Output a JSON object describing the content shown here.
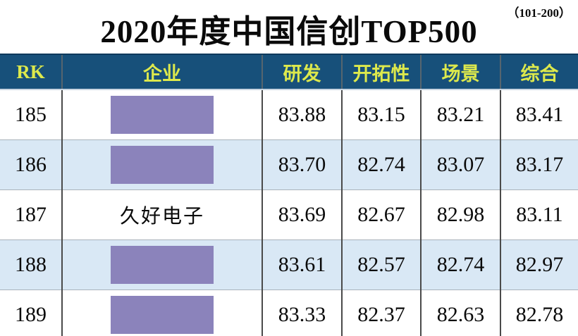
{
  "corner_note": "（101-200）",
  "title": "2020年度中国信创TOP500",
  "chart_data": {
    "type": "table",
    "title": "2020年度中国信创TOP500",
    "range_note": "（101-200）",
    "columns": [
      {
        "key": "rk",
        "label": "RK"
      },
      {
        "key": "company",
        "label": "企业"
      },
      {
        "key": "rd",
        "label": "研发"
      },
      {
        "key": "pioneering",
        "label": "开拓性"
      },
      {
        "key": "scene",
        "label": "场景"
      },
      {
        "key": "composite",
        "label": "综合"
      }
    ],
    "rows": [
      {
        "rk": "185",
        "company": "",
        "company_redacted": true,
        "rd": "83.88",
        "pioneering": "83.15",
        "scene": "83.21",
        "composite": "83.41"
      },
      {
        "rk": "186",
        "company": "",
        "company_redacted": true,
        "rd": "83.70",
        "pioneering": "82.74",
        "scene": "83.07",
        "composite": "83.17"
      },
      {
        "rk": "187",
        "company": "久好电子",
        "company_redacted": false,
        "rd": "83.69",
        "pioneering": "82.67",
        "scene": "82.98",
        "composite": "83.11"
      },
      {
        "rk": "188",
        "company": "",
        "company_redacted": true,
        "rd": "83.61",
        "pioneering": "82.57",
        "scene": "82.74",
        "composite": "82.97"
      },
      {
        "rk": "189",
        "company": "",
        "company_redacted": true,
        "rd": "83.33",
        "pioneering": "82.37",
        "scene": "82.63",
        "composite": "82.78"
      }
    ]
  },
  "colors": {
    "header_bg": "#17507A",
    "header_text": "#DDE94C",
    "row_alt_bg": "#D9E8F5",
    "redaction_box": "#8B83BB",
    "grid_vertical": "#4A4A4A",
    "grid_horizontal": "#A9B2BA",
    "text": "#0A0A0A"
  }
}
